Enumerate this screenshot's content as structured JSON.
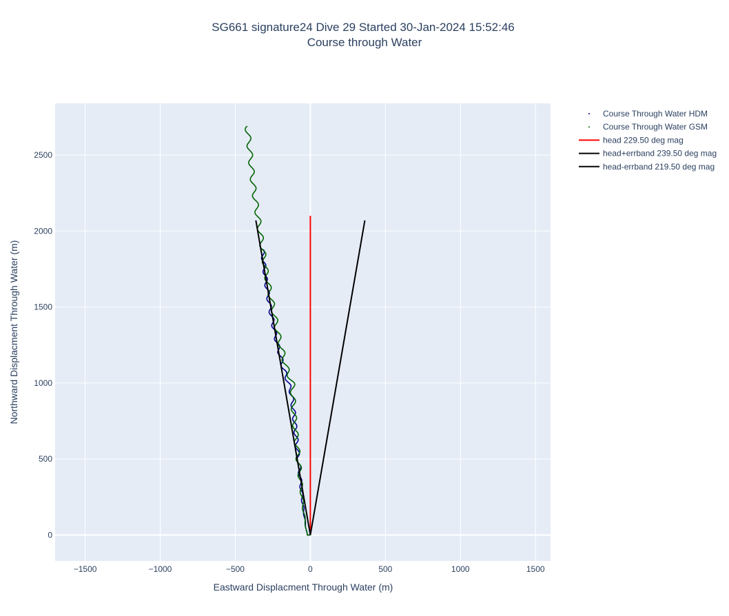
{
  "chart_data": {
    "type": "line",
    "title_line1": "SG661 signature24 Dive 29 Started 30-Jan-2024 15:52:46",
    "title_line2": "Course through Water",
    "xlabel": "Eastward Displacment Through Water (m)",
    "ylabel": "Northward Displacment Through Water (m)",
    "xlim": [
      -1700,
      1600
    ],
    "ylim": [
      -170,
      2840
    ],
    "xticks": [
      -1500,
      -1000,
      -500,
      0,
      500,
      1000,
      1500
    ],
    "xtick_labels": [
      "−1500",
      "−1000",
      "−500",
      "0",
      "500",
      "1000",
      "1500"
    ],
    "yticks": [
      0,
      500,
      1000,
      1500,
      2000,
      2500
    ],
    "ytick_labels": [
      "0",
      "500",
      "1000",
      "1500",
      "2000",
      "2500"
    ],
    "grid": true,
    "legend_position": "top-right outside",
    "series": [
      {
        "name": "Course Through Water HDM",
        "mode": "markers",
        "color": "#00008b",
        "track": [
          [
            0,
            0
          ],
          [
            -20,
            0
          ],
          [
            -30,
            50
          ],
          [
            -50,
            200
          ],
          [
            -70,
            400
          ],
          [
            -90,
            600
          ],
          [
            -110,
            800
          ],
          [
            -130,
            950
          ],
          [
            -180,
            1100
          ],
          [
            -230,
            1300
          ],
          [
            -270,
            1500
          ],
          [
            -300,
            1700
          ],
          [
            -320,
            1880
          ]
        ],
        "wiggle_amplitude": 12,
        "wiggle_period": 90
      },
      {
        "name": "Course Through Water GSM",
        "mode": "markers",
        "color": "#006400",
        "track": [
          [
            0,
            0
          ],
          [
            -20,
            0
          ],
          [
            -30,
            50
          ],
          [
            -50,
            200
          ],
          [
            -70,
            400
          ],
          [
            -90,
            600
          ],
          [
            -110,
            800
          ],
          [
            -120,
            1000
          ],
          [
            -160,
            1100
          ],
          [
            -210,
            1300
          ],
          [
            -250,
            1500
          ],
          [
            -290,
            1700
          ],
          [
            -320,
            1900
          ],
          [
            -350,
            2100
          ],
          [
            -380,
            2300
          ],
          [
            -400,
            2500
          ],
          [
            -420,
            2690
          ]
        ],
        "wiggle_amplitude": 16,
        "wiggle_period": 110
      },
      {
        "name": "head 229.50 deg mag",
        "mode": "lines",
        "color": "#ff0000",
        "x": [
          0,
          0
        ],
        "y": [
          0,
          2100
        ]
      },
      {
        "name": "head+errband 239.50 deg mag",
        "mode": "lines",
        "color": "#000000",
        "x": [
          0,
          363
        ],
        "y": [
          0,
          2070
        ]
      },
      {
        "name": "head-errband 219.50 deg mag",
        "mode": "lines",
        "color": "#000000",
        "x": [
          0,
          -363
        ],
        "y": [
          0,
          2070
        ]
      }
    ]
  }
}
